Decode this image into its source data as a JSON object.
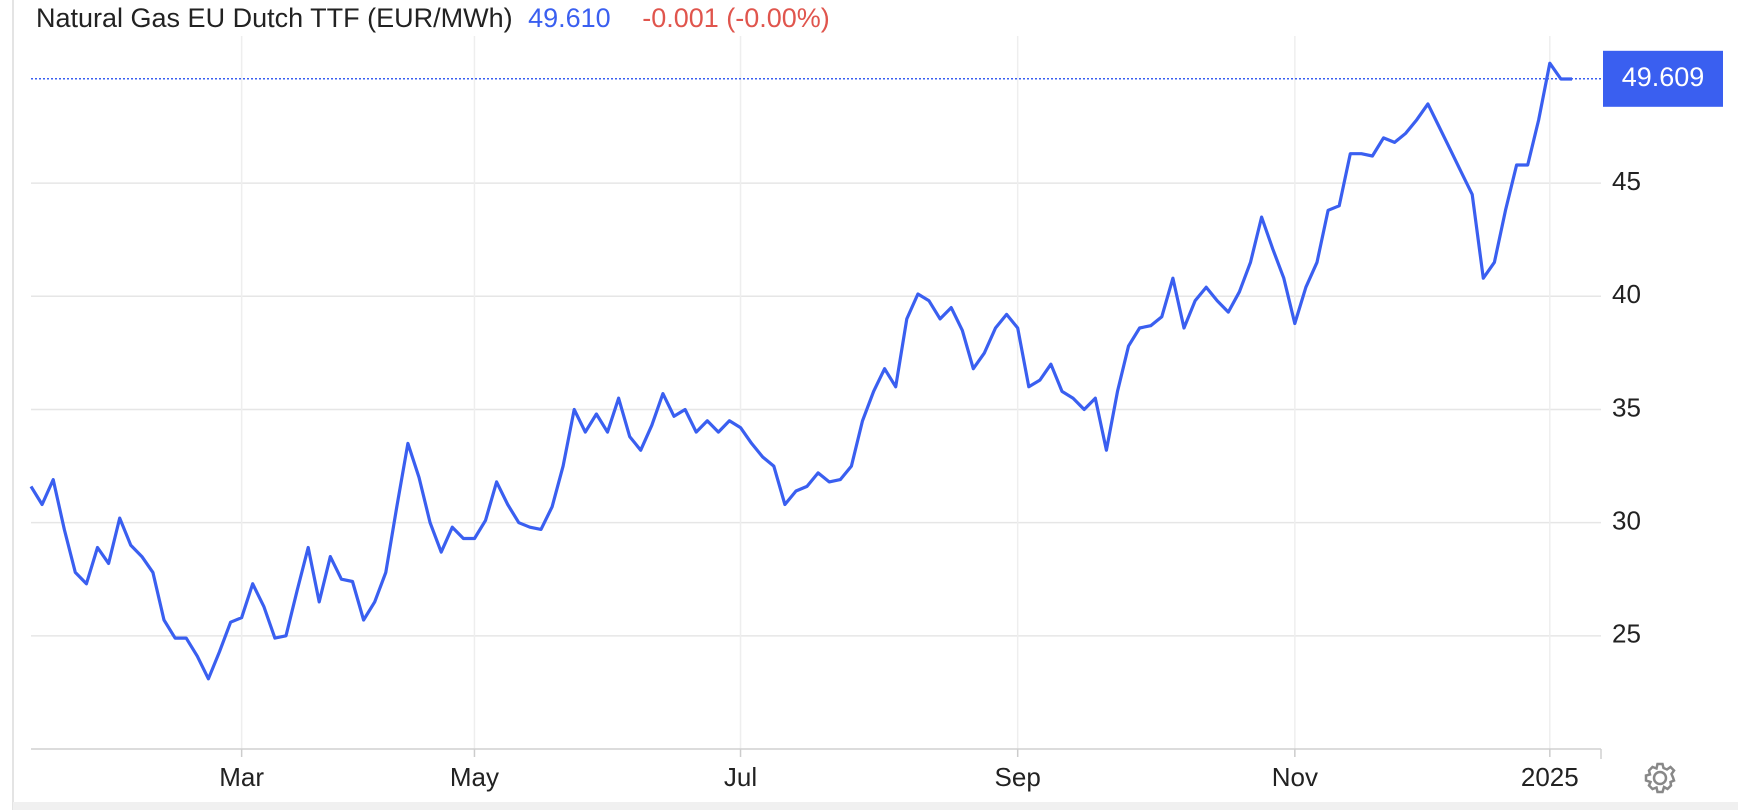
{
  "chart_data": {
    "type": "line",
    "title": "Natural Gas EU Dutch TTF (EUR/MWh)",
    "price": "49.610",
    "change": "-0.001 (-0.00%)",
    "last_value": 49.609,
    "categories": [
      null,
      null,
      null,
      null,
      null,
      null,
      null,
      null,
      null,
      null,
      null,
      null,
      null,
      null,
      null,
      null,
      null,
      null,
      null,
      "Mar",
      null,
      null,
      null,
      null,
      null,
      null,
      null,
      null,
      null,
      null,
      null,
      null,
      null,
      null,
      null,
      null,
      null,
      null,
      null,
      null,
      "May",
      null,
      null,
      null,
      null,
      null,
      null,
      null,
      null,
      null,
      null,
      null,
      null,
      null,
      null,
      null,
      null,
      null,
      null,
      null,
      null,
      null,
      null,
      null,
      "Jul",
      null,
      null,
      null,
      null,
      null,
      null,
      null,
      null,
      null,
      null,
      null,
      null,
      null,
      null,
      null,
      null,
      null,
      null,
      null,
      null,
      null,
      null,
      null,
      null,
      "Sep",
      null,
      null,
      null,
      null,
      null,
      null,
      null,
      null,
      null,
      null,
      null,
      null,
      null,
      null,
      null,
      null,
      null,
      null,
      null,
      null,
      null,
      null,
      null,
      null,
      "Nov",
      null,
      null,
      null,
      null,
      null,
      null,
      null,
      null,
      null,
      null,
      null,
      null,
      null,
      null,
      null,
      null,
      null,
      null,
      null,
      null,
      null,
      null,
      "2025",
      null,
      null
    ],
    "series": [
      {
        "name": "Natural Gas EU Dutch TTF",
        "color": "#3a5ff0",
        "values": [
          31.6,
          30.8,
          31.9,
          29.7,
          27.8,
          27.3,
          28.9,
          28.2,
          30.2,
          29.0,
          28.5,
          27.8,
          25.7,
          24.9,
          24.9,
          24.1,
          23.1,
          24.3,
          25.6,
          25.8,
          27.3,
          26.3,
          24.9,
          25.0,
          27.0,
          28.9,
          26.5,
          28.5,
          27.5,
          27.4,
          25.7,
          26.5,
          27.8,
          30.7,
          33.5,
          32.0,
          30.0,
          28.7,
          29.8,
          29.3,
          29.3,
          30.1,
          31.8,
          30.8,
          30.0,
          29.8,
          29.7,
          30.7,
          32.5,
          35.0,
          34.0,
          34.8,
          34.0,
          35.5,
          33.8,
          33.2,
          34.3,
          35.7,
          34.7,
          35.0,
          34.0,
          34.5,
          34.0,
          34.5,
          34.2,
          33.5,
          32.9,
          32.5,
          30.8,
          31.4,
          31.6,
          32.2,
          31.8,
          31.9,
          32.5,
          34.5,
          35.8,
          36.8,
          36.0,
          39.0,
          40.1,
          39.8,
          39.0,
          39.5,
          38.5,
          36.8,
          37.5,
          38.6,
          39.2,
          38.6,
          36.0,
          36.3,
          37.0,
          35.8,
          35.5,
          35.0,
          35.5,
          33.2,
          35.8,
          37.8,
          38.6,
          38.7,
          39.1,
          40.8,
          38.6,
          39.8,
          40.4,
          39.8,
          39.3,
          40.2,
          41.5,
          43.5,
          42.1,
          40.8,
          38.8,
          40.4,
          41.5,
          43.8,
          44.0,
          46.3,
          46.3,
          46.2,
          47.0,
          46.8,
          47.2,
          47.8,
          48.5,
          47.5,
          46.5,
          45.5,
          44.5,
          40.8,
          41.5,
          43.8,
          45.8,
          45.8,
          47.8,
          50.3,
          49.6,
          49.6
        ]
      }
    ],
    "ylim": [
      20,
      51.5
    ],
    "yticks": [
      25,
      30,
      35,
      40,
      45
    ],
    "grid": true,
    "price_color": "#3a5ff0",
    "change_color": "#e0554d",
    "badge_color": "#3a5ff0"
  }
}
